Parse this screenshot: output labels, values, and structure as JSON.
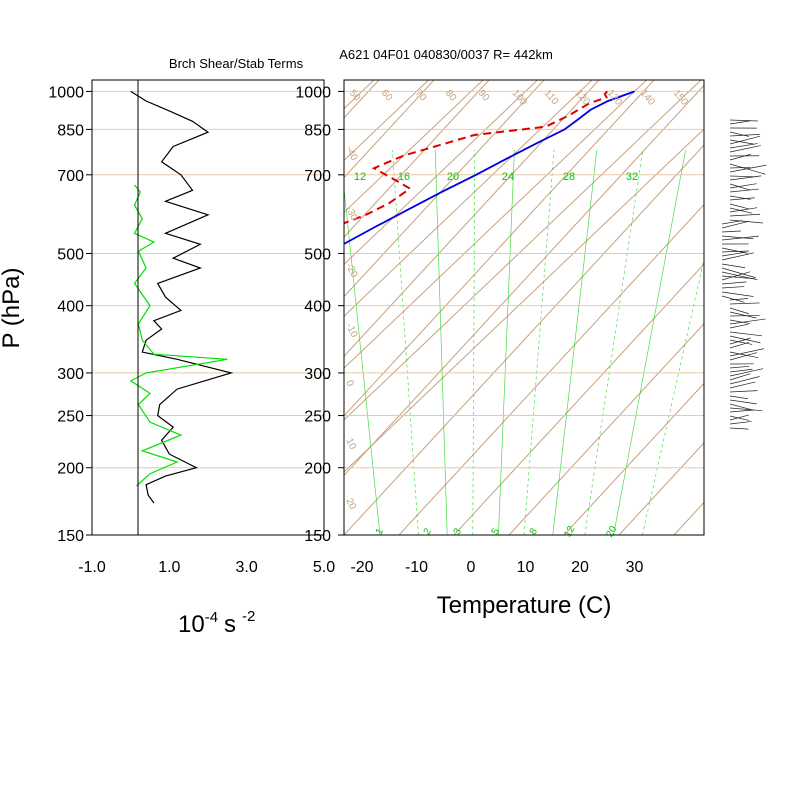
{
  "figure": {
    "title": "A621 04F01 040830/0037 R= 442km",
    "left_title": "Brch Shear/Stab Terms",
    "ylabel": "P (hPa)",
    "left_xlabel": {
      "base": "10",
      "exp1": "-4",
      "s": "s",
      "exp2": "-2"
    },
    "right_xlabel": "Temperature (C)"
  },
  "chart_data": [
    {
      "id": "shear_stab",
      "type": "line",
      "title": "Brch Shear/Stab Terms",
      "ylabel": "P (hPa)",
      "y_scale": "log",
      "ylim": [
        1050,
        150
      ],
      "xlim": [
        -1.0,
        5.0
      ],
      "xticks": [
        -1.0,
        1.0,
        3.0,
        5.0
      ],
      "xtick_labels": [
        "-1.0",
        "1.0",
        "3.0",
        "5.0"
      ],
      "yticks": [
        150,
        200,
        250,
        300,
        400,
        500,
        700,
        850,
        1000
      ],
      "colors": {
        "black": "#000000",
        "green": "#00e000",
        "grid": "#e8c9a8"
      },
      "series": [
        {
          "color": "#000000",
          "points": [
            [
              0.6,
              172
            ],
            [
              0.45,
              178
            ],
            [
              0.4,
              186
            ],
            [
              0.9,
              193
            ],
            [
              1.7,
              200
            ],
            [
              1.0,
              212
            ],
            [
              0.8,
              225
            ],
            [
              1.1,
              238
            ],
            [
              0.7,
              250
            ],
            [
              0.75,
              262
            ],
            [
              1.2,
              280
            ],
            [
              2.6,
              300
            ],
            [
              1.2,
              318
            ],
            [
              0.3,
              328
            ],
            [
              0.4,
              345
            ],
            [
              0.8,
              362
            ],
            [
              0.6,
              375
            ],
            [
              1.3,
              392
            ],
            [
              0.9,
              415
            ],
            [
              0.7,
              440
            ],
            [
              1.8,
              470
            ],
            [
              1.1,
              490
            ],
            [
              1.8,
              520
            ],
            [
              0.9,
              545
            ],
            [
              2.0,
              590
            ],
            [
              0.9,
              625
            ],
            [
              1.6,
              655
            ],
            [
              1.3,
              700
            ],
            [
              0.8,
              740
            ],
            [
              1.1,
              790
            ],
            [
              2.0,
              840
            ],
            [
              1.6,
              880
            ],
            [
              1.0,
              920
            ],
            [
              0.4,
              960
            ],
            [
              0.0,
              1000
            ]
          ]
        },
        {
          "color": "#00e000",
          "points": [
            [
              0.15,
              185
            ],
            [
              0.5,
              195
            ],
            [
              1.2,
              205
            ],
            [
              0.3,
              215
            ],
            [
              1.3,
              230
            ],
            [
              0.5,
              243
            ],
            [
              0.2,
              262
            ],
            [
              0.5,
              275
            ],
            [
              0.0,
              290
            ],
            [
              0.4,
              300
            ],
            [
              2.5,
              318
            ],
            [
              0.6,
              325
            ],
            [
              0.3,
              345
            ],
            [
              0.2,
              370
            ],
            [
              0.5,
              400
            ],
            [
              0.1,
              440
            ],
            [
              0.4,
              470
            ],
            [
              0.2,
              505
            ],
            [
              0.6,
              525
            ],
            [
              0.1,
              545
            ],
            [
              0.3,
              580
            ],
            [
              0.1,
              615
            ],
            [
              0.25,
              650
            ],
            [
              0.1,
              670
            ]
          ]
        }
      ]
    },
    {
      "id": "skewt",
      "type": "line",
      "xlabel": "Temperature (C)",
      "y_scale": "log",
      "ylim": [
        1050,
        150
      ],
      "xlim": [
        -23,
        42
      ],
      "xticks": [
        -20,
        -10,
        0,
        10,
        20,
        30
      ],
      "xtick_labels": [
        "-20",
        "-10",
        "0",
        "10",
        "20",
        "30"
      ],
      "yticks": [
        150,
        200,
        250,
        300,
        400,
        500,
        700,
        850,
        1000
      ],
      "isotherm_labels": [
        "-70",
        "-60",
        "-50",
        "-40",
        "-30",
        "-20",
        "-10",
        "0",
        "10",
        "20"
      ],
      "adiabat_labels": [
        "50",
        "60",
        "70",
        "80",
        "90",
        "100",
        "110",
        "120",
        "130",
        "140",
        "150"
      ],
      "mixing_ratio_top_labels": [
        "12",
        "16",
        "20",
        "24",
        "28",
        "32"
      ],
      "mixing_ratio_bottom_labels": [
        "1",
        "2",
        "3",
        "5",
        "8",
        "12",
        "20"
      ],
      "colors": {
        "temperature": "#0000dd",
        "dewpoint": "#dd0000",
        "isotherm": "#c8a27c",
        "mixing_ratio": "#00cc00"
      },
      "series": [
        {
          "name_hidden": "temperature",
          "color": "#0000dd",
          "dashed": false,
          "points": [
            [
              30.0,
              1000
            ],
            [
              27.0,
              960
            ],
            [
              25.5,
              925
            ],
            [
              25.0,
              885
            ],
            [
              24.5,
              850
            ],
            [
              22.0,
              800
            ],
            [
              19.5,
              750
            ],
            [
              17.0,
              700
            ],
            [
              14.0,
              650
            ],
            [
              11.0,
              600
            ],
            [
              8.5,
              560
            ],
            [
              6.0,
              520
            ],
            [
              3.5,
              480
            ],
            [
              1.5,
              450
            ],
            [
              -2.5,
              400
            ],
            [
              -6.0,
              360
            ],
            [
              -10.0,
              330
            ],
            [
              -14.0,
              300
            ],
            [
              -18.0,
              280
            ],
            [
              -23.5,
              260
            ],
            [
              -29.0,
              240
            ],
            [
              -35.0,
              220
            ],
            [
              -42.0,
              200
            ],
            [
              -47.0,
              188
            ],
            [
              -52.0,
              180
            ],
            [
              -58.0,
              171
            ]
          ]
        },
        {
          "name_hidden": "dewpoint",
          "color": "#dd0000",
          "dashed": true,
          "points": [
            [
              25.0,
              1000
            ],
            [
              25.0,
              990
            ],
            [
              26.0,
              975
            ],
            [
              24.0,
              950
            ],
            [
              22.5,
              900
            ],
            [
              20.5,
              860
            ],
            [
              9.0,
              830
            ],
            [
              4.0,
              790
            ],
            [
              0.0,
              760
            ],
            [
              -3.0,
              720
            ],
            [
              4.0,
              680
            ],
            [
              7.5,
              660
            ],
            [
              6.5,
              620
            ],
            [
              4.5,
              590
            ],
            [
              1.0,
              560
            ],
            [
              -3.0,
              540
            ],
            [
              -4.0,
              510
            ],
            [
              -8.0,
              480
            ],
            [
              -7.0,
              460
            ],
            [
              -10.5,
              440
            ],
            [
              -13.0,
              425
            ],
            [
              -17.0,
              410
            ],
            [
              -18.0,
              400
            ],
            [
              -24.0,
              395
            ],
            [
              -34.0,
              370
            ],
            [
              -29.0,
              350
            ],
            [
              -30.0,
              335
            ],
            [
              -34.0,
              320
            ],
            [
              -42.0,
              305
            ],
            [
              -53.0,
              300
            ],
            [
              -52.0,
              290
            ],
            [
              -49.0,
              270
            ],
            [
              -51.0,
              252
            ],
            [
              -51.0,
              240
            ],
            [
              -53.5,
              230
            ],
            [
              -56.0,
              215
            ],
            [
              -56.5,
              205
            ],
            [
              -60.0,
              200
            ],
            [
              -62.0,
              195
            ]
          ]
        }
      ]
    }
  ],
  "wind_barbs": {
    "color": "#000000",
    "description_hidden": "barbs"
  }
}
